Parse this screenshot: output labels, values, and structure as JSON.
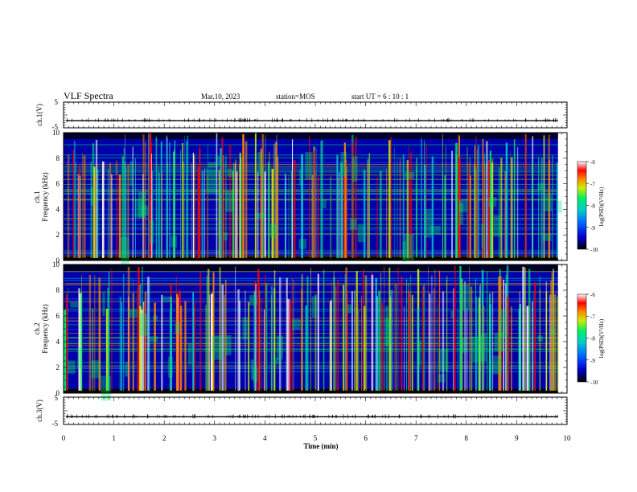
{
  "header": {
    "title": "VLF Spectra",
    "date": "Mar.10, 2023",
    "station": "station=MOS",
    "start": "start UT =  6 : 10 : 1"
  },
  "colors": {
    "background": "#ffffff",
    "axes": "#000000",
    "colormap": [
      "#000000",
      "#0000cc",
      "#0066ff",
      "#00cccc",
      "#00ee66",
      "#ccee00",
      "#ff8800",
      "#ff0000",
      "#ffffff"
    ]
  },
  "chart_data": [
    {
      "id": "ch1_waveform",
      "type": "line",
      "ylabel": "ch.1(V)",
      "ylim": [
        -5,
        5
      ],
      "yticks": [
        "5",
        "-5"
      ],
      "xlim": [
        0,
        10
      ],
      "baseline": -2.2
    },
    {
      "id": "ch1_spectrogram",
      "type": "heatmap",
      "ylabel": "ch.1\nFrequency (kHz)",
      "ylim": [
        0,
        10
      ],
      "yticks": [
        "0",
        "2",
        "4",
        "6",
        "8",
        "10"
      ],
      "xlim": [
        0,
        10
      ],
      "colorbar": {
        "label": "log(PSD)(V²/Hz)",
        "ticks": [
          "-6",
          "-7",
          "-8",
          "-9",
          "-10"
        ],
        "range": [
          -10,
          -6
        ]
      }
    },
    {
      "id": "ch2_spectrogram",
      "type": "heatmap",
      "ylabel": "ch.2\nFrequency (kHz)",
      "ylim": [
        0,
        10
      ],
      "yticks": [
        "0",
        "2",
        "4",
        "6",
        "8",
        "10"
      ],
      "xlim": [
        0,
        10
      ],
      "colorbar": {
        "label": "log(PSD)(V²/Hz)",
        "ticks": [
          "-6",
          "-7",
          "-8",
          "-9",
          "-10"
        ],
        "range": [
          -10,
          -6
        ]
      }
    },
    {
      "id": "ch3_waveform",
      "type": "line",
      "ylabel": "ch.3(V)",
      "ylim": [
        -5,
        5
      ],
      "yticks": [
        "5",
        "-5"
      ],
      "xlim": [
        0,
        10
      ],
      "baseline": -2.2,
      "xlabel": "Time (min)",
      "xticks": [
        "0",
        "1",
        "2",
        "3",
        "4",
        "5",
        "6",
        "7",
        "8",
        "9",
        "10"
      ],
      "data_end_min": 9.82
    }
  ],
  "labels": {
    "ch1_wave": "ch.1(V)",
    "ch1_spec_a": "ch.1",
    "ch1_spec_b": "Frequency (kHz)",
    "ch2_spec_a": "ch.2",
    "ch2_spec_b": "Frequency (kHz)",
    "ch3_wave": "ch.3(V)",
    "xlabel": "Time (min)",
    "colorbar_label": "log(PSD)(V²/Hz)"
  }
}
